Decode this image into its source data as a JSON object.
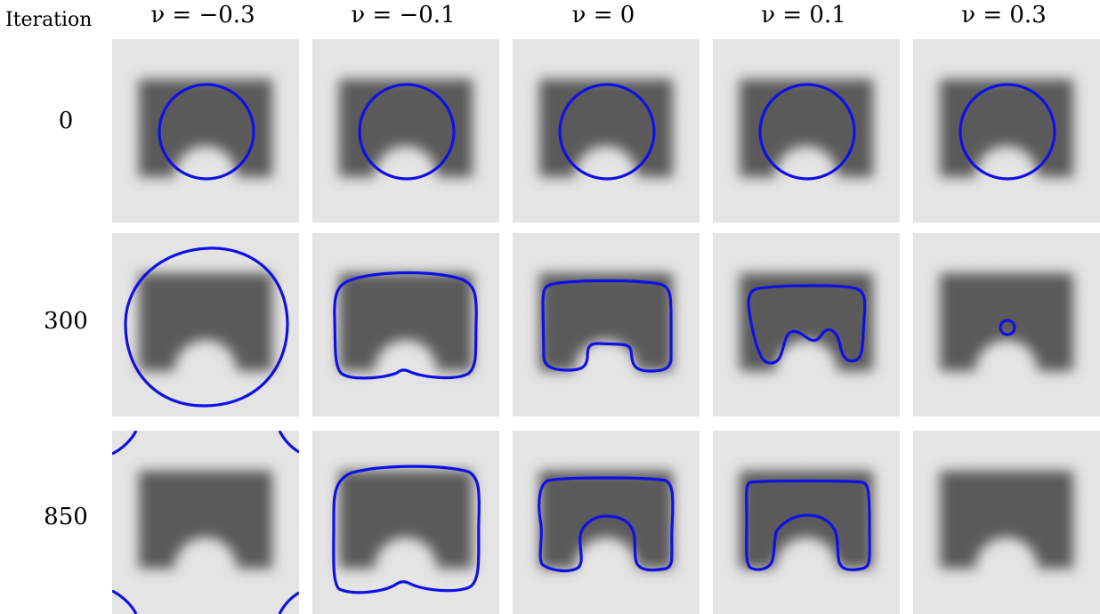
{
  "corner_label": "Iteration",
  "columns": [
    {
      "label": "ν = −0.3"
    },
    {
      "label": "ν = −0.1"
    },
    {
      "label": "ν = 0"
    },
    {
      "label": "ν = 0.1"
    },
    {
      "label": "ν = 0.3"
    }
  ],
  "rows": [
    {
      "label": "0"
    },
    {
      "label": "300"
    },
    {
      "label": "850"
    }
  ],
  "colors": {
    "contour": "#1010e6",
    "background_noise": "#d9d9d9",
    "shape": "#5a5a5a"
  }
}
